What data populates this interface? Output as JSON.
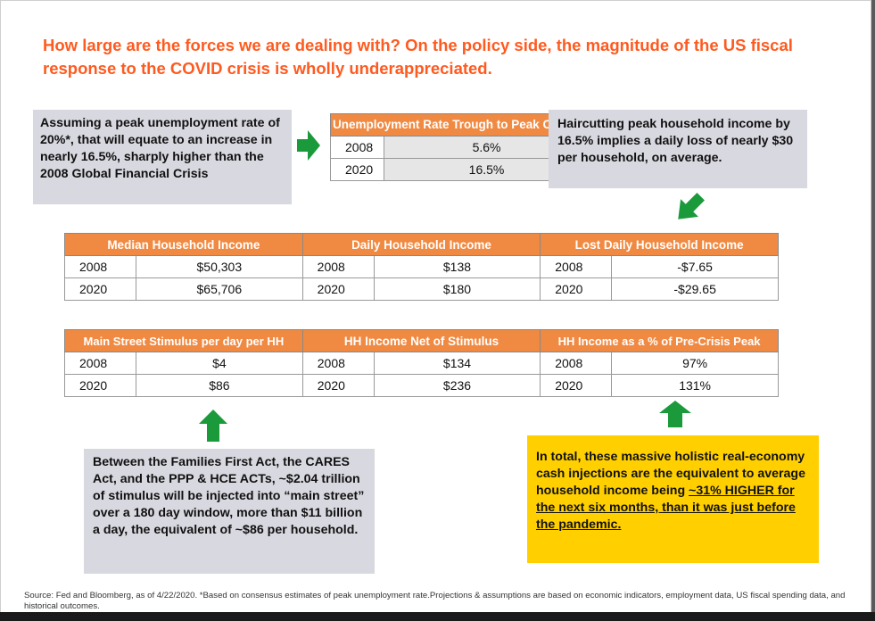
{
  "title": "How large are the forces we are dealing with? On the policy side, the magnitude of the US fiscal response to the COVID crisis is wholly underappreciated.",
  "boxes": {
    "assumption": "Assuming a peak unemployment rate of 20%*, that will equate to an increase in nearly 16.5%, sharply higher than the 2008 Global Financial Crisis",
    "haircut": "Haircutting peak household income by 16.5% implies a daily loss of nearly $30 per household, on average.",
    "stimulus": "Between the Families First Act, the CARES Act, and the PPP & HCE ACTs, ~$2.04 trillion of stimulus will be injected into “main street” over a 180 day window, more than $11 billion a day, the equivalent of ~$86 per household.",
    "total_prefix": "In total, these massive holistic real-economy cash injections are the equivalent to average household income being ",
    "total_emph": "~31% HIGHER for the next six months, than it was just before the pandemic."
  },
  "unemployment_table": {
    "header": "Unemployment Rate Trough to Peak Change",
    "rows": [
      {
        "year": "2008",
        "value": "5.6%"
      },
      {
        "year": "2020",
        "value": "16.5%"
      }
    ]
  },
  "income_table": {
    "headers": [
      "Median Household Income",
      "Daily Household Income",
      "Lost Daily Household Income"
    ],
    "rows": [
      {
        "y1": "2008",
        "v1": "$50,303",
        "y2": "2008",
        "v2": "$138",
        "y3": "2008",
        "v3": "-$7.65"
      },
      {
        "y1": "2020",
        "v1": "$65,706",
        "y2": "2020",
        "v2": "$180",
        "y3": "2020",
        "v3": "-$29.65"
      }
    ]
  },
  "stimulus_table": {
    "headers": [
      "Main Street Stimulus per day per HH",
      "HH Income Net of Stimulus",
      "HH Income as a % of Pre-Crisis Peak"
    ],
    "rows": [
      {
        "y1": "2008",
        "v1": "$4",
        "y2": "2008",
        "v2": "$134",
        "y3": "2008",
        "v3": "97%"
      },
      {
        "y1": "2020",
        "v1": "$86",
        "y2": "2020",
        "v2": "$236",
        "y3": "2020",
        "v3": "131%"
      }
    ]
  },
  "source": "Source: Fed and Bloomberg, as of 4/22/2020. *Based on consensus estimates of peak unemployment rate.Projections & assumptions are based on economic indicators, employment data, US fiscal spending data, and historical outcomes.",
  "colors": {
    "accent": "#ff5a1f",
    "header_fill": "#f08a42",
    "arrow": "#1a9a3a",
    "highlight": "#ffcf00",
    "box_gray": "#d8d8e0"
  },
  "icons": [
    "arrow-right-icon",
    "arrow-down-icon",
    "arrow-up-icon",
    "arrow-up-icon"
  ]
}
